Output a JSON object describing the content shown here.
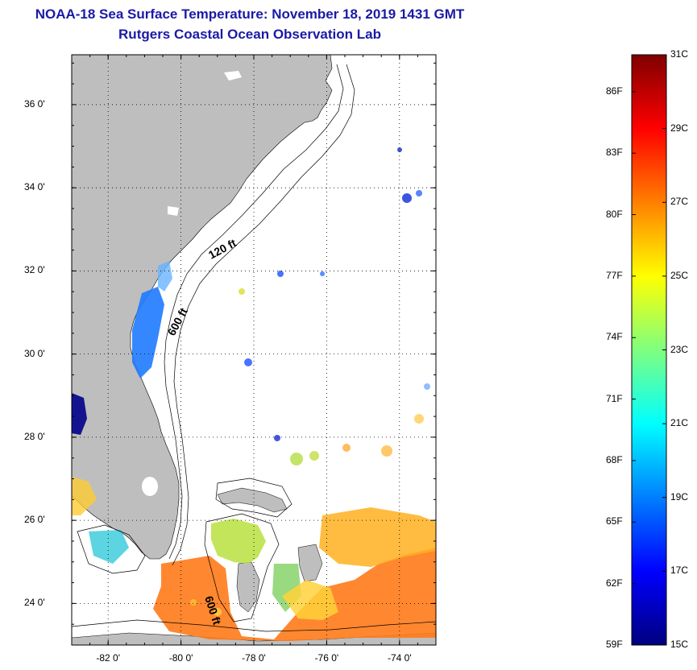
{
  "title": "NOAA-18 Sea Surface Temperature:  November 18, 2019 1431 GMT",
  "subtitle": "Rutgers Coastal Ocean Observation Lab",
  "map": {
    "lat_ticks": [
      {
        "value": 36,
        "label": "36 0'"
      },
      {
        "value": 34,
        "label": "34 0'"
      },
      {
        "value": 32,
        "label": "32 0'"
      },
      {
        "value": 30,
        "label": "30 0'"
      },
      {
        "value": 28,
        "label": "28 0'"
      },
      {
        "value": 26,
        "label": "26 0'"
      },
      {
        "value": 24,
        "label": "24 0'"
      }
    ],
    "lon_ticks": [
      {
        "value": -82,
        "label": "-82 0'"
      },
      {
        "value": -80,
        "label": "-80 0'"
      },
      {
        "value": -78,
        "label": "-78 0'"
      },
      {
        "value": -76,
        "label": "-76 0'"
      },
      {
        "value": -74,
        "label": "-74 0'"
      }
    ],
    "lat_range": [
      23,
      37.2
    ],
    "lon_range": [
      -83,
      -73
    ],
    "contour_labels": {
      "shelf_120": "120 ft",
      "shelf_600_north": "600 ft",
      "shelf_600_south": "600 ft"
    },
    "land_color": "#bebebe",
    "ocean_color": "#ffffff"
  },
  "colorbar": {
    "celsius_labels": [
      {
        "value": 31,
        "label": "31C"
      },
      {
        "value": 29,
        "label": "29C"
      },
      {
        "value": 27,
        "label": "27C"
      },
      {
        "value": 25,
        "label": "25C"
      },
      {
        "value": 23,
        "label": "23C"
      },
      {
        "value": 21,
        "label": "21C"
      },
      {
        "value": 19,
        "label": "19C"
      },
      {
        "value": 17,
        "label": "17C"
      },
      {
        "value": 15,
        "label": "15C"
      }
    ],
    "fahrenheit_labels": [
      {
        "value": 86,
        "label": "86F"
      },
      {
        "value": 83,
        "label": "83F"
      },
      {
        "value": 80,
        "label": "80F"
      },
      {
        "value": 77,
        "label": "77F"
      },
      {
        "value": 74,
        "label": "74F"
      },
      {
        "value": 71,
        "label": "71F"
      },
      {
        "value": 68,
        "label": "68F"
      },
      {
        "value": 65,
        "label": "65F"
      },
      {
        "value": 62,
        "label": "62F"
      },
      {
        "value": 59,
        "label": "59F"
      }
    ],
    "range_c": [
      15,
      31
    ],
    "colors": [
      "#00007f",
      "#0000ff",
      "#007fff",
      "#00ffff",
      "#7fff7f",
      "#ffff00",
      "#ff7f00",
      "#ff0000",
      "#7f0000"
    ]
  }
}
